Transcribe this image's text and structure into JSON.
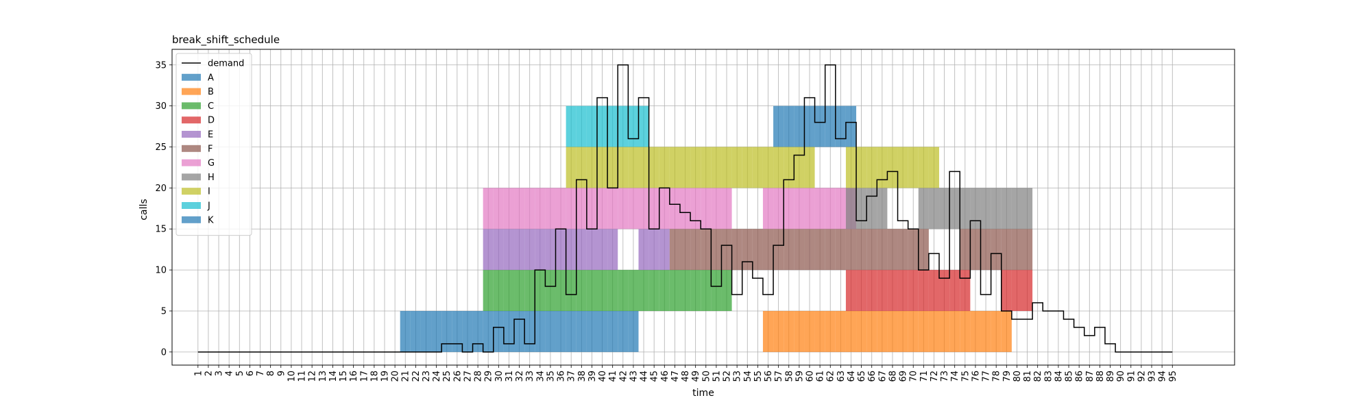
{
  "chart_data": {
    "type": "bar",
    "title": "break_shift_schedule",
    "xlabel": "time",
    "ylabel": "calls",
    "xlim": [
      -1.5,
      101
    ],
    "ylim": [
      -1.6,
      36.9
    ],
    "yticks": [
      0,
      5,
      10,
      15,
      20,
      25,
      30,
      35
    ],
    "grid": true,
    "legend": {
      "position": "upper-left",
      "entries": [
        "demand",
        "A",
        "B",
        "C",
        "D",
        "E",
        "F",
        "G",
        "H",
        "I",
        "J",
        "K"
      ]
    },
    "x_categories": [
      "1",
      "2",
      "3",
      "4",
      "5",
      "6",
      "7",
      "8",
      "9",
      "10",
      "11",
      "12",
      "13",
      "14",
      "15",
      "16",
      "17",
      "18",
      "19",
      "20",
      "21",
      "22",
      "23",
      "24",
      "25",
      "26",
      "27",
      "28",
      "29",
      "30",
      "31",
      "32",
      "33",
      "34",
      "35",
      "36",
      "37",
      "38",
      "39",
      "40",
      "41",
      "42",
      "43",
      "44",
      "45",
      "46",
      "47",
      "48",
      "49",
      "50",
      "51",
      "52",
      "53",
      "54",
      "55",
      "56",
      "57",
      "58",
      "59",
      "60",
      "61",
      "62",
      "63",
      "64",
      "65",
      "66",
      "67",
      "68",
      "69",
      "70",
      "71",
      "72",
      "73",
      "74",
      "75",
      "76",
      "77",
      "78",
      "79",
      "80",
      "81",
      "82",
      "83",
      "84",
      "85",
      "86",
      "87",
      "88",
      "89",
      "90",
      "91",
      "92",
      "93",
      "94",
      "95"
    ],
    "demand": {
      "name": "demand",
      "color": "#000000",
      "values": [
        0,
        0,
        0,
        0,
        0,
        0,
        0,
        0,
        0,
        0,
        0,
        0,
        0,
        0,
        0,
        0,
        0,
        0,
        0,
        0,
        0,
        0,
        0,
        0,
        1,
        1,
        0,
        1,
        0,
        3,
        1,
        4,
        1,
        10,
        8,
        15,
        7,
        21,
        15,
        31,
        20,
        35,
        26,
        31,
        15,
        20,
        18,
        17,
        16,
        15,
        8,
        13,
        7,
        11,
        9,
        7,
        13,
        21,
        24,
        31,
        28,
        35,
        26,
        28,
        16,
        19,
        21,
        22,
        16,
        15,
        10,
        12,
        9,
        22,
        9,
        16,
        7,
        12,
        5,
        4,
        4,
        6,
        5,
        5,
        4,
        3,
        2,
        3,
        1,
        0,
        0,
        0,
        0,
        0,
        0
      ]
    },
    "shifts": [
      {
        "name": "A",
        "color": "#1f77b4",
        "base": 0,
        "height": 5,
        "start": 20.5,
        "end": 44.5
      },
      {
        "name": "B",
        "color": "#ff7f0e",
        "base": 0,
        "height": 5,
        "start": 55.5,
        "end": 79.5
      },
      {
        "name": "C",
        "color": "#2ca02c",
        "base": 5,
        "height": 5,
        "start": 28.5,
        "end": 52.5
      },
      {
        "name": "D",
        "color": "#d62728",
        "base": 5,
        "height": 5,
        "start": 63.5,
        "end": 81.5
      },
      {
        "name": "E",
        "color": "#9467bd",
        "base": 10,
        "height": 5,
        "start": 28.5,
        "end": 46.5
      },
      {
        "name": "F",
        "color": "#8c564b",
        "base": 10,
        "height": 5,
        "start": 46.5,
        "end": 81.5
      },
      {
        "name": "G",
        "color": "#e377c2",
        "base": 15,
        "height": 5,
        "start": 28.5,
        "end": 64.5
      },
      {
        "name": "H",
        "color": "#7f7f7f",
        "base": 15,
        "height": 5,
        "start": 63.5,
        "end": 81.5
      },
      {
        "name": "I",
        "color": "#bcbd22",
        "base": 20,
        "height": 5,
        "start": 36.5,
        "end": 72.5
      },
      {
        "name": "J",
        "color": "#17becf",
        "base": 25,
        "height": 5,
        "start": 36.5,
        "end": 44.5
      },
      {
        "name": "K",
        "color": "#1f77b4",
        "base": 25,
        "height": 5,
        "start": 56.5,
        "end": 64.5
      }
    ],
    "breaks": [
      {
        "shift": "A",
        "x": [
          44,
          45,
          46
        ]
      },
      {
        "shift": "B",
        "x": [
          80,
          81,
          82
        ]
      },
      {
        "shift": "C",
        "x": [
          53,
          54,
          55
        ]
      },
      {
        "shift": "D",
        "x": [
          76,
          77,
          78
        ]
      },
      {
        "shift": "E",
        "x": [
          42,
          43
        ]
      },
      {
        "shift": "F",
        "x": [
          72,
          73,
          74
        ]
      },
      {
        "shift": "G",
        "x": [
          53,
          54,
          55
        ]
      },
      {
        "shift": "H",
        "x": [
          68,
          69,
          70
        ]
      },
      {
        "shift": "I",
        "x": [
          61,
          62,
          63
        ]
      }
    ]
  }
}
